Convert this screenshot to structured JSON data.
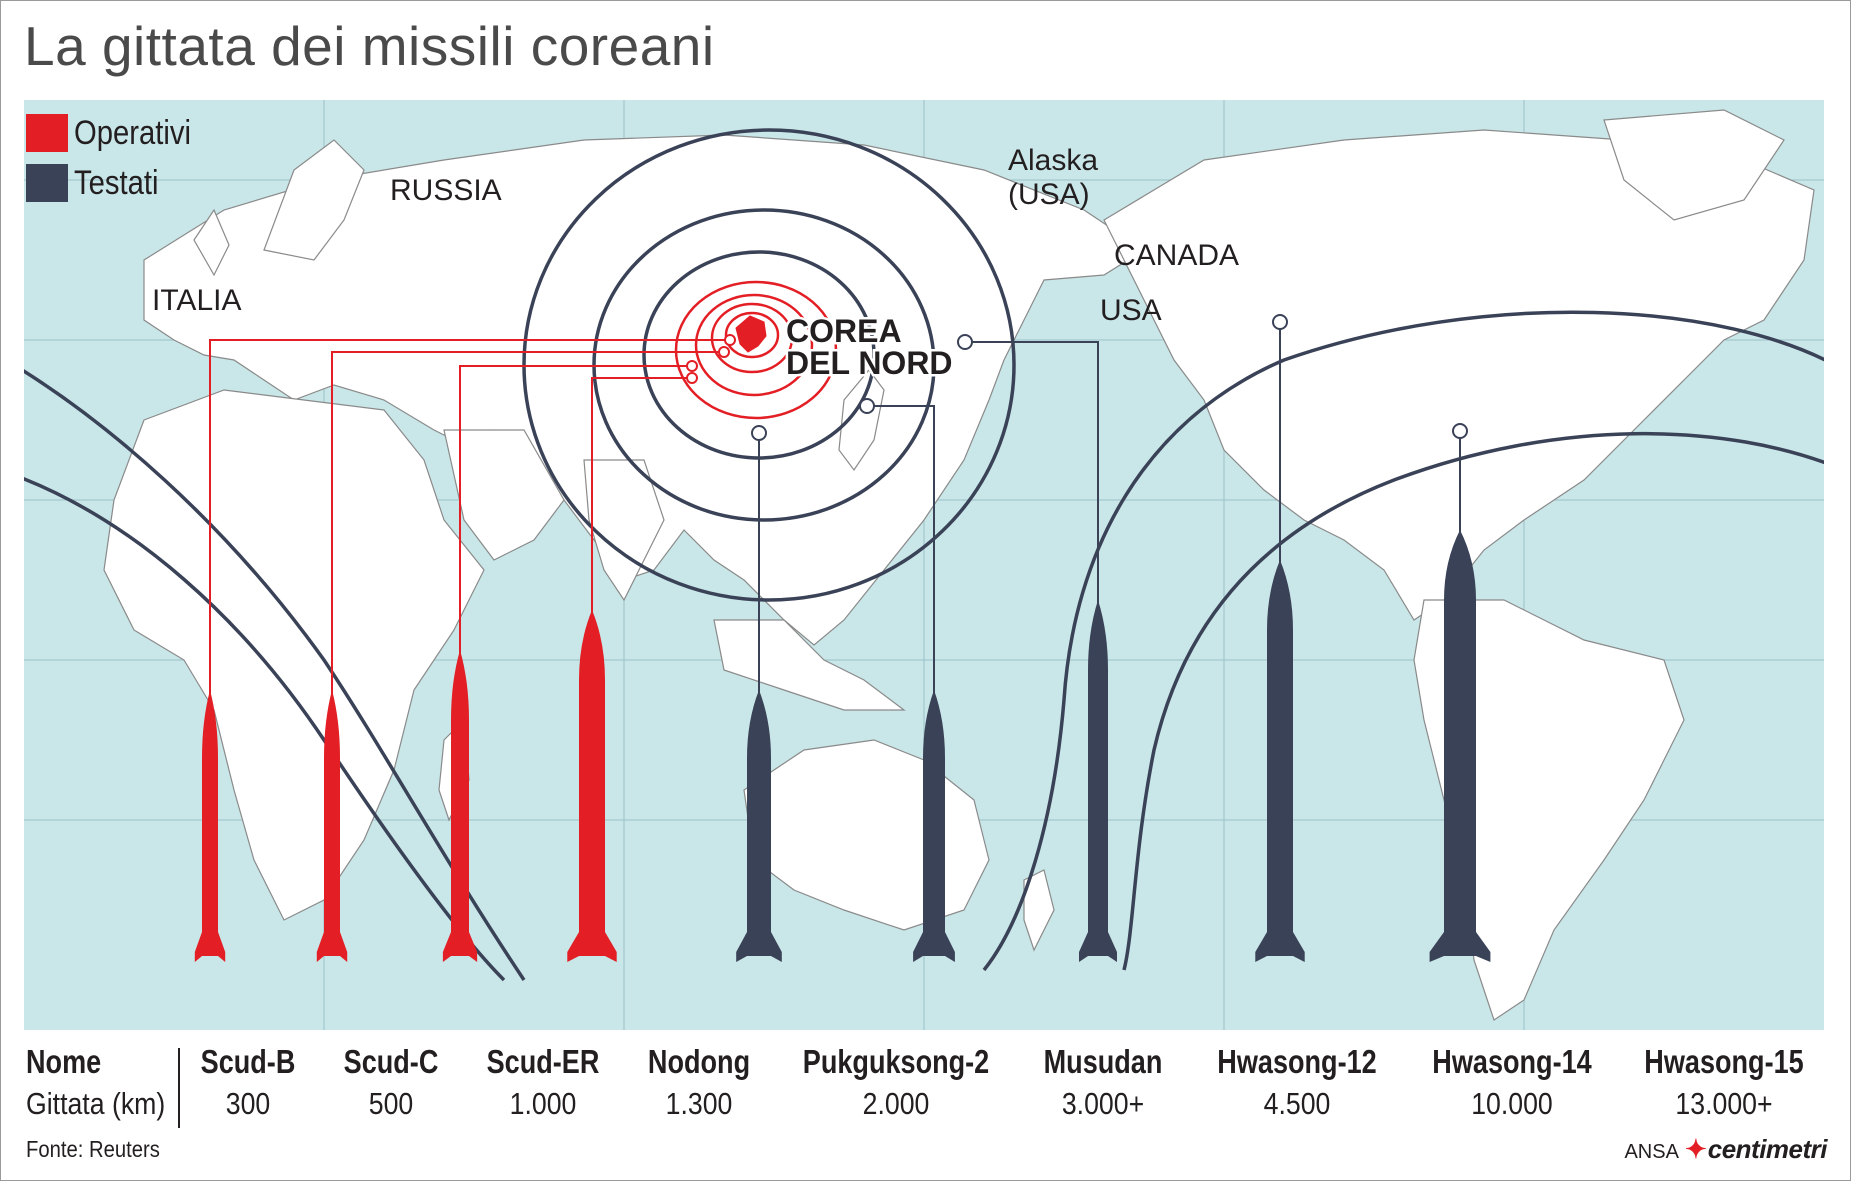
{
  "title": "La gittata dei missili coreani",
  "legend": [
    {
      "label": "Operativi",
      "color": "#e31e24"
    },
    {
      "label": "Testati",
      "color": "#3a4257"
    }
  ],
  "map_labels": {
    "russia": "RUSSIA",
    "italia": "ITALIA",
    "alaska_line1": "Alaska",
    "alaska_line2": "(USA)",
    "canada": "CANADA",
    "usa": "USA",
    "nk_line1": "COREA",
    "nk_line2": "DEL NORD"
  },
  "table": {
    "name_header": "Nome",
    "range_header": "Gittata (km)"
  },
  "missiles": [
    {
      "name": "Scud-B",
      "range": "300",
      "status": "Operativi"
    },
    {
      "name": "Scud-C",
      "range": "500",
      "status": "Operativi"
    },
    {
      "name": "Scud-ER",
      "range": "1.000",
      "status": "Operativi"
    },
    {
      "name": "Nodong",
      "range": "1.300",
      "status": "Operativi"
    },
    {
      "name": "Pukguksong-2",
      "range": "2.000",
      "status": "Testati"
    },
    {
      "name": "Musudan",
      "range": "3.000+",
      "status": "Testati"
    },
    {
      "name": "Hwasong-12",
      "range": "4.500",
      "status": "Testati"
    },
    {
      "name": "Hwasong-14",
      "range": "10.000",
      "status": "Testati"
    },
    {
      "name": "Hwasong-15",
      "range": "13.000+",
      "status": "Testati"
    }
  ],
  "source": "Fonte: Reuters",
  "credit": {
    "agency": "ANSA",
    "brand": "centimetri"
  },
  "colors": {
    "operational": "#e31e24",
    "tested": "#3a4257",
    "ocean": "#c9e6e8",
    "land": "#ffffff"
  }
}
